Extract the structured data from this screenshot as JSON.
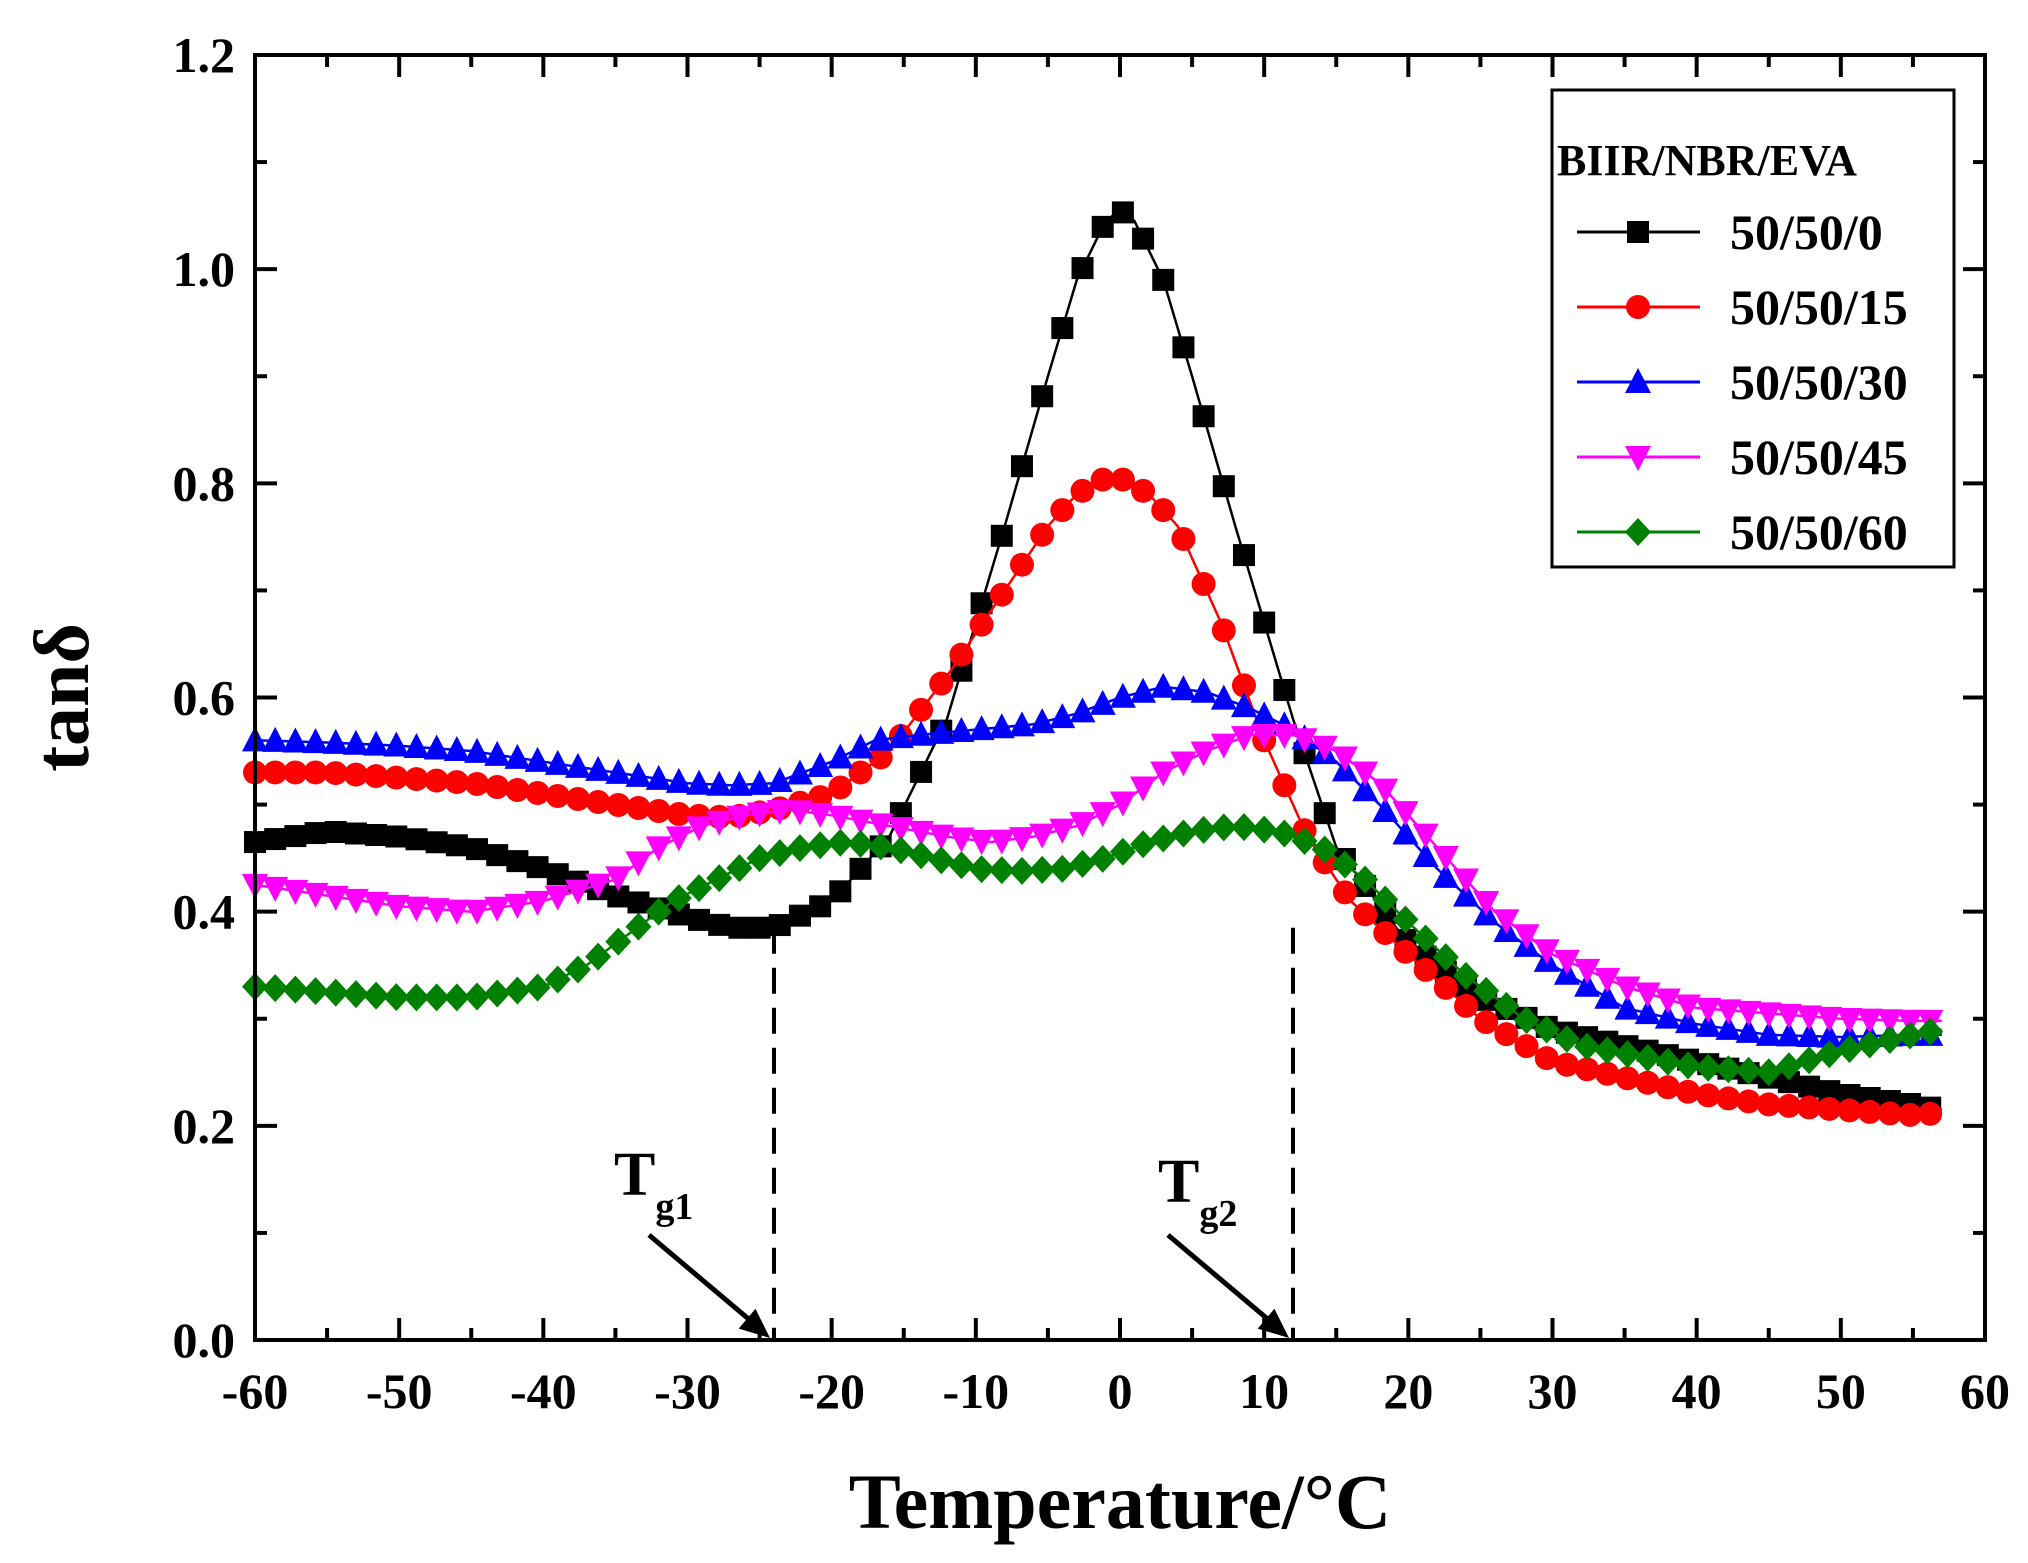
{
  "chart_data": {
    "type": "line",
    "title": "",
    "xlabel": "Temperature/°C",
    "ylabel": "tanδ",
    "xlim": [
      -60,
      60
    ],
    "ylim": [
      0.0,
      1.2
    ],
    "xticks": [
      -60,
      -50,
      -40,
      -30,
      -20,
      -10,
      0,
      10,
      20,
      30,
      40,
      50,
      60
    ],
    "yticks": [
      0.0,
      0.2,
      0.4,
      0.6,
      0.8,
      1.0,
      1.2
    ],
    "xtick_labels": [
      "-60",
      "-50",
      "-40",
      "-30",
      "-20",
      "-10",
      "0",
      "10",
      "20",
      "30",
      "40",
      "50",
      "60"
    ],
    "ytick_labels": [
      "0.0",
      "0.2",
      "0.4",
      "0.6",
      "0.8",
      "1.0",
      "1.2"
    ],
    "grid": false,
    "legend": {
      "title": "BIIR/NBR/EVA",
      "position": "top-right"
    },
    "annotations": [
      {
        "base": "T",
        "sub": "g1",
        "x": -24,
        "arrow_to": [
          -24,
          0.0
        ]
      },
      {
        "base": "T",
        "sub": "g2",
        "x": 12,
        "arrow_to": [
          12,
          0.0
        ]
      }
    ],
    "series": [
      {
        "name": "50/50/0",
        "color": "#000000",
        "marker": "square",
        "points": [
          [
            -60,
            0.465
          ],
          [
            -55,
            0.475
          ],
          [
            -50,
            0.47
          ],
          [
            -45,
            0.46
          ],
          [
            -40,
            0.44
          ],
          [
            -35,
            0.415
          ],
          [
            -30,
            0.395
          ],
          [
            -27,
            0.385
          ],
          [
            -24,
            0.385
          ],
          [
            -20,
            0.41
          ],
          [
            -16,
            0.47
          ],
          [
            -12,
            0.58
          ],
          [
            -8,
            0.76
          ],
          [
            -5,
            0.9
          ],
          [
            -3,
            0.99
          ],
          [
            -1,
            1.045
          ],
          [
            0,
            1.055
          ],
          [
            1,
            1.045
          ],
          [
            3,
            0.99
          ],
          [
            5,
            0.9
          ],
          [
            8,
            0.76
          ],
          [
            10,
            0.67
          ],
          [
            12,
            0.58
          ],
          [
            15,
            0.46
          ],
          [
            20,
            0.37
          ],
          [
            25,
            0.32
          ],
          [
            30,
            0.29
          ],
          [
            35,
            0.275
          ],
          [
            40,
            0.26
          ],
          [
            45,
            0.245
          ],
          [
            50,
            0.23
          ],
          [
            55,
            0.22
          ],
          [
            57,
            0.215
          ]
        ]
      },
      {
        "name": "50/50/15",
        "color": "#ff0000",
        "marker": "circle",
        "points": [
          [
            -60,
            0.53
          ],
          [
            -55,
            0.53
          ],
          [
            -50,
            0.525
          ],
          [
            -45,
            0.52
          ],
          [
            -40,
            0.51
          ],
          [
            -35,
            0.5
          ],
          [
            -30,
            0.49
          ],
          [
            -27,
            0.488
          ],
          [
            -24,
            0.495
          ],
          [
            -20,
            0.51
          ],
          [
            -16,
            0.55
          ],
          [
            -12,
            0.62
          ],
          [
            -8,
            0.7
          ],
          [
            -5,
            0.76
          ],
          [
            -3,
            0.79
          ],
          [
            -1,
            0.805
          ],
          [
            0,
            0.805
          ],
          [
            2,
            0.79
          ],
          [
            4,
            0.76
          ],
          [
            7,
            0.67
          ],
          [
            10,
            0.56
          ],
          [
            13,
            0.47
          ],
          [
            16,
            0.41
          ],
          [
            20,
            0.36
          ],
          [
            25,
            0.3
          ],
          [
            30,
            0.26
          ],
          [
            35,
            0.245
          ],
          [
            40,
            0.23
          ],
          [
            45,
            0.22
          ],
          [
            50,
            0.215
          ],
          [
            55,
            0.21
          ],
          [
            57,
            0.212
          ]
        ]
      },
      {
        "name": "50/50/30",
        "color": "#0000ff",
        "marker": "triangle-up",
        "points": [
          [
            -60,
            0.56
          ],
          [
            -55,
            0.558
          ],
          [
            -50,
            0.555
          ],
          [
            -45,
            0.55
          ],
          [
            -40,
            0.54
          ],
          [
            -35,
            0.53
          ],
          [
            -30,
            0.52
          ],
          [
            -27,
            0.518
          ],
          [
            -24,
            0.52
          ],
          [
            -20,
            0.54
          ],
          [
            -17,
            0.56
          ],
          [
            -14,
            0.565
          ],
          [
            -10,
            0.57
          ],
          [
            -6,
            0.575
          ],
          [
            -3,
            0.585
          ],
          [
            0,
            0.6
          ],
          [
            3,
            0.61
          ],
          [
            6,
            0.605
          ],
          [
            9,
            0.59
          ],
          [
            12,
            0.57
          ],
          [
            15,
            0.54
          ],
          [
            18,
            0.5
          ],
          [
            22,
            0.44
          ],
          [
            26,
            0.39
          ],
          [
            30,
            0.35
          ],
          [
            35,
            0.31
          ],
          [
            40,
            0.295
          ],
          [
            45,
            0.285
          ],
          [
            50,
            0.283
          ],
          [
            55,
            0.285
          ],
          [
            57,
            0.285
          ]
        ]
      },
      {
        "name": "50/50/45",
        "color": "#ff00ff",
        "marker": "triangle-down",
        "points": [
          [
            -60,
            0.425
          ],
          [
            -55,
            0.415
          ],
          [
            -50,
            0.405
          ],
          [
            -45,
            0.4
          ],
          [
            -40,
            0.41
          ],
          [
            -35,
            0.43
          ],
          [
            -32,
            0.46
          ],
          [
            -29,
            0.48
          ],
          [
            -26,
            0.49
          ],
          [
            -23,
            0.495
          ],
          [
            -20,
            0.49
          ],
          [
            -16,
            0.48
          ],
          [
            -12,
            0.47
          ],
          [
            -9,
            0.465
          ],
          [
            -6,
            0.47
          ],
          [
            -3,
            0.48
          ],
          [
            0,
            0.5
          ],
          [
            3,
            0.53
          ],
          [
            6,
            0.55
          ],
          [
            9,
            0.565
          ],
          [
            12,
            0.565
          ],
          [
            15,
            0.55
          ],
          [
            18,
            0.52
          ],
          [
            22,
            0.46
          ],
          [
            26,
            0.4
          ],
          [
            30,
            0.36
          ],
          [
            35,
            0.33
          ],
          [
            40,
            0.31
          ],
          [
            45,
            0.305
          ],
          [
            50,
            0.3
          ],
          [
            55,
            0.298
          ],
          [
            57,
            0.298
          ]
        ]
      },
      {
        "name": "50/50/60",
        "color": "#008000",
        "marker": "diamond",
        "points": [
          [
            -60,
            0.33
          ],
          [
            -55,
            0.325
          ],
          [
            -50,
            0.32
          ],
          [
            -45,
            0.32
          ],
          [
            -40,
            0.33
          ],
          [
            -37,
            0.35
          ],
          [
            -34,
            0.38
          ],
          [
            -31,
            0.41
          ],
          [
            -28,
            0.43
          ],
          [
            -25,
            0.45
          ],
          [
            -22,
            0.46
          ],
          [
            -19,
            0.465
          ],
          [
            -16,
            0.46
          ],
          [
            -13,
            0.45
          ],
          [
            -10,
            0.44
          ],
          [
            -7,
            0.438
          ],
          [
            -4,
            0.44
          ],
          [
            -1,
            0.45
          ],
          [
            2,
            0.465
          ],
          [
            5,
            0.475
          ],
          [
            8,
            0.48
          ],
          [
            11,
            0.475
          ],
          [
            14,
            0.46
          ],
          [
            17,
            0.43
          ],
          [
            20,
            0.39
          ],
          [
            24,
            0.34
          ],
          [
            28,
            0.3
          ],
          [
            32,
            0.275
          ],
          [
            36,
            0.265
          ],
          [
            40,
            0.255
          ],
          [
            45,
            0.25
          ],
          [
            50,
            0.27
          ],
          [
            55,
            0.285
          ],
          [
            57,
            0.29
          ]
        ]
      }
    ]
  }
}
